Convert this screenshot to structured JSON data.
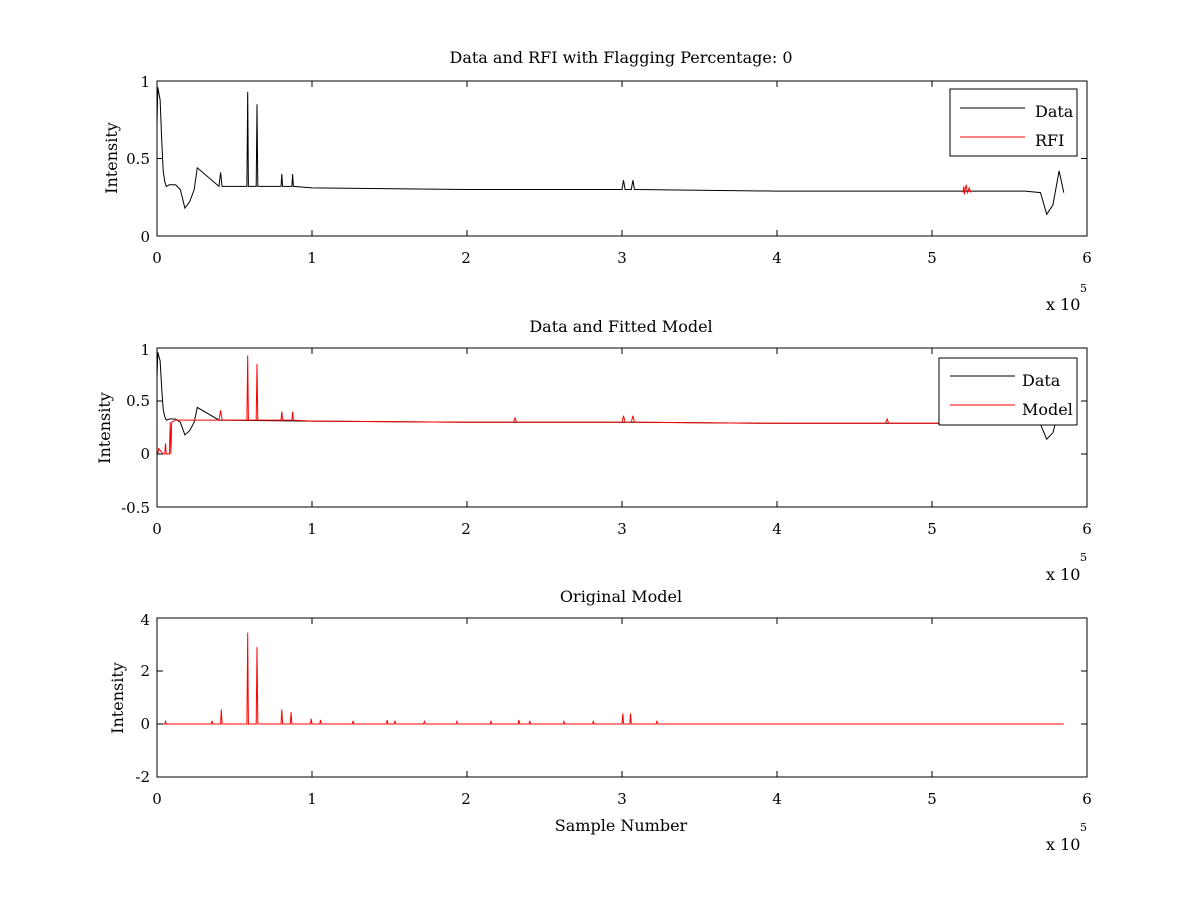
{
  "figure": {
    "background": "#ffffff",
    "axis_color": "#000000",
    "data_color": "#000000",
    "model_color": "#ff0000"
  },
  "chart_data": [
    {
      "type": "line",
      "title": "Data and RFI with Flagging Percentage: 0",
      "xlabel": "",
      "ylabel": "Intensity",
      "xlim": [
        0,
        600000
      ],
      "ylim": [
        0,
        1
      ],
      "xticks": [
        0,
        1,
        2,
        3,
        4,
        5,
        6
      ],
      "yticks": [
        0,
        0.5,
        1
      ],
      "x_exponent": {
        "base": "x 10",
        "power": "5"
      },
      "grid": false,
      "legend": {
        "position": "top-right",
        "entries": [
          "Data",
          "RFI"
        ]
      },
      "series": [
        {
          "name": "Data",
          "color": "#000000",
          "x": [
            0,
            500,
            1000,
            2000,
            3000,
            4000,
            5000,
            6000,
            8000,
            12000,
            15000,
            18000,
            21000,
            24000,
            26000,
            40000,
            41000,
            42000,
            58000,
            58500,
            59000,
            64000,
            64500,
            65000,
            80000,
            80500,
            81000,
            87000,
            87500,
            88000,
            100000,
            200000,
            300000,
            301000,
            302000,
            306000,
            307000,
            308000,
            400000,
            500000,
            560000,
            570000,
            574000,
            578000,
            582000,
            585000
          ],
          "y": [
            0.72,
            0.96,
            0.93,
            0.88,
            0.62,
            0.42,
            0.35,
            0.32,
            0.33,
            0.33,
            0.3,
            0.18,
            0.22,
            0.3,
            0.44,
            0.32,
            0.41,
            0.32,
            0.32,
            0.93,
            0.32,
            0.32,
            0.85,
            0.32,
            0.32,
            0.4,
            0.32,
            0.32,
            0.4,
            0.32,
            0.31,
            0.3,
            0.3,
            0.36,
            0.3,
            0.3,
            0.36,
            0.3,
            0.29,
            0.29,
            0.29,
            0.28,
            0.14,
            0.2,
            0.42,
            0.28
          ]
        },
        {
          "name": "RFI",
          "color": "#ff0000",
          "x": [
            520000,
            520500,
            521000,
            522000,
            523000,
            524000,
            525000
          ],
          "y": [
            0.28,
            0.32,
            0.27,
            0.33,
            0.28,
            0.31,
            0.28
          ]
        }
      ]
    },
    {
      "type": "line",
      "title": "Data and Fitted Model",
      "xlabel": "",
      "ylabel": "Intensity",
      "xlim": [
        0,
        600000
      ],
      "ylim": [
        -0.5,
        1
      ],
      "xticks": [
        0,
        1,
        2,
        3,
        4,
        5,
        6
      ],
      "yticks": [
        -0.5,
        0,
        0.5,
        1
      ],
      "x_exponent": {
        "base": "x 10",
        "power": "5"
      },
      "grid": false,
      "legend": {
        "position": "top-right",
        "entries": [
          "Data",
          "Model"
        ]
      },
      "series": [
        {
          "name": "Data",
          "color": "#000000",
          "x": [
            0,
            500,
            1000,
            2000,
            3000,
            4000,
            5000,
            6000,
            8000,
            12000,
            15000,
            18000,
            21000,
            24000,
            26000,
            40000,
            100000,
            200000,
            300000,
            400000,
            500000,
            560000,
            570000,
            574000,
            578000,
            582000,
            585000
          ],
          "y": [
            0.72,
            0.96,
            0.93,
            0.88,
            0.62,
            0.42,
            0.35,
            0.32,
            0.33,
            0.33,
            0.3,
            0.18,
            0.22,
            0.3,
            0.44,
            0.32,
            0.31,
            0.3,
            0.3,
            0.29,
            0.29,
            0.29,
            0.28,
            0.14,
            0.2,
            0.42,
            0.28
          ]
        },
        {
          "name": "Model",
          "color": "#ff0000",
          "x": [
            500,
            1000,
            4000,
            5000,
            5500,
            6000,
            7000,
            8000,
            8500,
            9000,
            9500,
            12000,
            40000,
            41000,
            42000,
            58000,
            58500,
            59000,
            64000,
            64500,
            65000,
            80000,
            80500,
            81000,
            87000,
            87500,
            88000,
            100000,
            200000,
            230000,
            231000,
            232000,
            300000,
            301000,
            302000,
            306000,
            307000,
            308000,
            400000,
            470000,
            471000,
            472000,
            500000,
            530000
          ],
          "y": [
            0.0,
            0.05,
            0.0,
            0.0,
            0.1,
            0.0,
            0.0,
            0.0,
            0.3,
            0.0,
            0.3,
            0.32,
            0.32,
            0.41,
            0.32,
            0.32,
            0.93,
            0.32,
            0.32,
            0.85,
            0.32,
            0.32,
            0.4,
            0.32,
            0.32,
            0.4,
            0.32,
            0.31,
            0.3,
            0.3,
            0.34,
            0.3,
            0.3,
            0.36,
            0.3,
            0.3,
            0.36,
            0.3,
            0.29,
            0.29,
            0.33,
            0.29,
            0.29,
            0.29
          ]
        }
      ]
    },
    {
      "type": "line",
      "title": "Original Model",
      "xlabel": "Sample Number",
      "ylabel": "Intensity",
      "xlim": [
        0,
        600000
      ],
      "ylim": [
        -2,
        4
      ],
      "xticks": [
        0,
        1,
        2,
        3,
        4,
        5,
        6
      ],
      "yticks": [
        -2,
        0,
        2,
        4
      ],
      "x_exponent": {
        "base": "x 10",
        "power": "5"
      },
      "grid": false,
      "legend": null,
      "series": [
        {
          "name": "",
          "color": "#ff0000",
          "x": [
            0,
            5000,
            5500,
            6000,
            35000,
            35500,
            36000,
            41000,
            41500,
            42000,
            58000,
            58500,
            59000,
            64000,
            64500,
            65000,
            80000,
            80500,
            81000,
            86000,
            86500,
            87000,
            99000,
            99500,
            100000,
            105000,
            105500,
            106000,
            126000,
            126500,
            127000,
            148000,
            148500,
            149000,
            153000,
            153500,
            154000,
            172000,
            172500,
            173000,
            193000,
            193500,
            194000,
            215000,
            215500,
            216000,
            233000,
            233500,
            234000,
            240000,
            240500,
            241000,
            262000,
            262500,
            263000,
            281000,
            281500,
            282000,
            300000,
            300500,
            301000,
            305000,
            305500,
            306000,
            322000,
            322500,
            323000,
            350000,
            420000,
            500000,
            585000
          ],
          "y": [
            0,
            0,
            0.1,
            0,
            0,
            0.12,
            0,
            0,
            0.55,
            0,
            0,
            3.45,
            0,
            0,
            2.9,
            0,
            0,
            0.55,
            0,
            0,
            0.45,
            0,
            0,
            0.2,
            0,
            0,
            0.15,
            0,
            0,
            0.12,
            0,
            0,
            0.15,
            0,
            0,
            0.12,
            0,
            0,
            0.1,
            0,
            0,
            0.1,
            0,
            0,
            0.1,
            0,
            0,
            0.15,
            0,
            0,
            0.12,
            0,
            0,
            0.1,
            0,
            0,
            0.1,
            0,
            0,
            0.4,
            0,
            0,
            0.4,
            0,
            0,
            0.12,
            0,
            0,
            0,
            0,
            0
          ]
        }
      ]
    }
  ]
}
